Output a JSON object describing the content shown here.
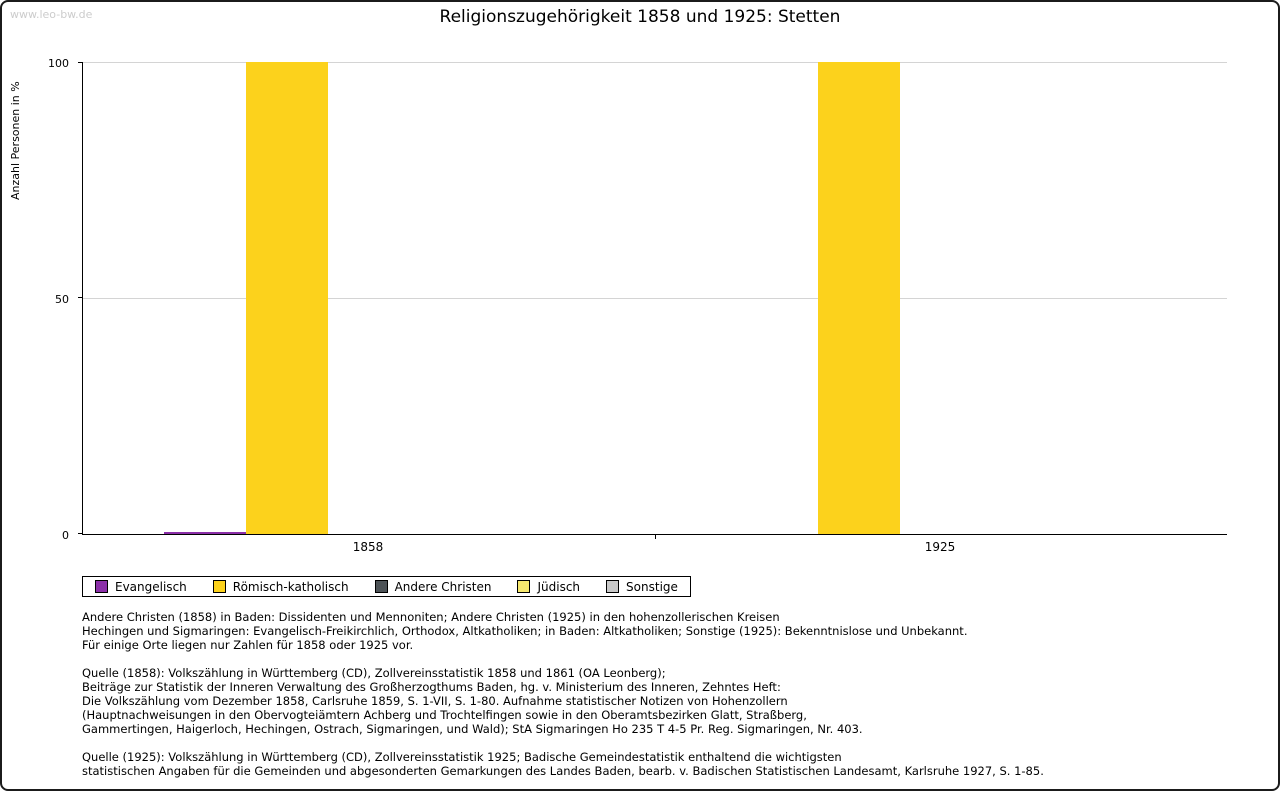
{
  "watermark": "www.leo-bw.de",
  "chart_data": {
    "type": "bar",
    "title": "Religionszugehörigkeit 1858 und 1925: Stetten",
    "ylabel": "Anzahl Personen in %",
    "ylim": [
      0,
      100
    ],
    "yticks": [
      0,
      50,
      100
    ],
    "grid": true,
    "legend_position": "bottom-left",
    "categories": [
      "1858",
      "1925"
    ],
    "series": [
      {
        "name": "Evangelisch",
        "color": "#8b2fa8",
        "values": [
          0.5,
          0
        ]
      },
      {
        "name": "Römisch-katholisch",
        "color": "#fcd21c",
        "values": [
          100,
          100
        ]
      },
      {
        "name": "Andere Christen",
        "color": "#4d5357",
        "values": [
          0,
          0
        ]
      },
      {
        "name": "Jüdisch",
        "color": "#f7e96e",
        "values": [
          0,
          0
        ]
      },
      {
        "name": "Sonstige",
        "color": "#c9c9c9",
        "values": [
          0,
          0
        ]
      }
    ]
  },
  "notes": {
    "para1": [
      "Andere Christen (1858) in Baden: Dissidenten und Mennoniten; Andere Christen (1925) in den hohenzollerischen Kreisen",
      "Hechingen und Sigmaringen: Evangelisch-Freikirchlich, Orthodox, Altkatholiken; in Baden: Altkatholiken; Sonstige (1925): Bekenntnislose und Unbekannt.",
      "Für einige Orte liegen nur Zahlen für 1858 oder 1925 vor."
    ],
    "para2": [
      "Quelle (1858): Volkszählung in Württemberg (CD), Zollvereinsstatistik 1858 und 1861 (OA Leonberg);",
      "Beiträge zur Statistik der Inneren Verwaltung des Großherzogthums Baden, hg. v. Ministerium des Inneren, Zehntes Heft:",
      "Die Volkszählung vom Dezember 1858, Carlsruhe 1859, S. 1-VII, S. 1-80. Aufnahme statistischer Notizen von Hohenzollern",
      "(Hauptnachweisungen in den Obervogteiämtern Achberg und Trochtelfingen sowie in den Oberamtsbezirken Glatt, Straßberg,",
      "Gammertingen, Haigerloch, Hechingen, Ostrach, Sigmaringen, und Wald); StA Sigmaringen Ho 235 T 4-5 Pr. Reg. Sigmaringen, Nr. 403."
    ],
    "para3": [
      "Quelle (1925): Volkszählung in Württemberg (CD), Zollvereinsstatistik 1925; Badische Gemeindestatistik enthaltend die wichtigsten",
      "statistischen Angaben für die Gemeinden und abgesonderten Gemarkungen des Landes Baden, bearb. v. Badischen Statistischen Landesamt, Karlsruhe 1927, S. 1-85."
    ]
  }
}
